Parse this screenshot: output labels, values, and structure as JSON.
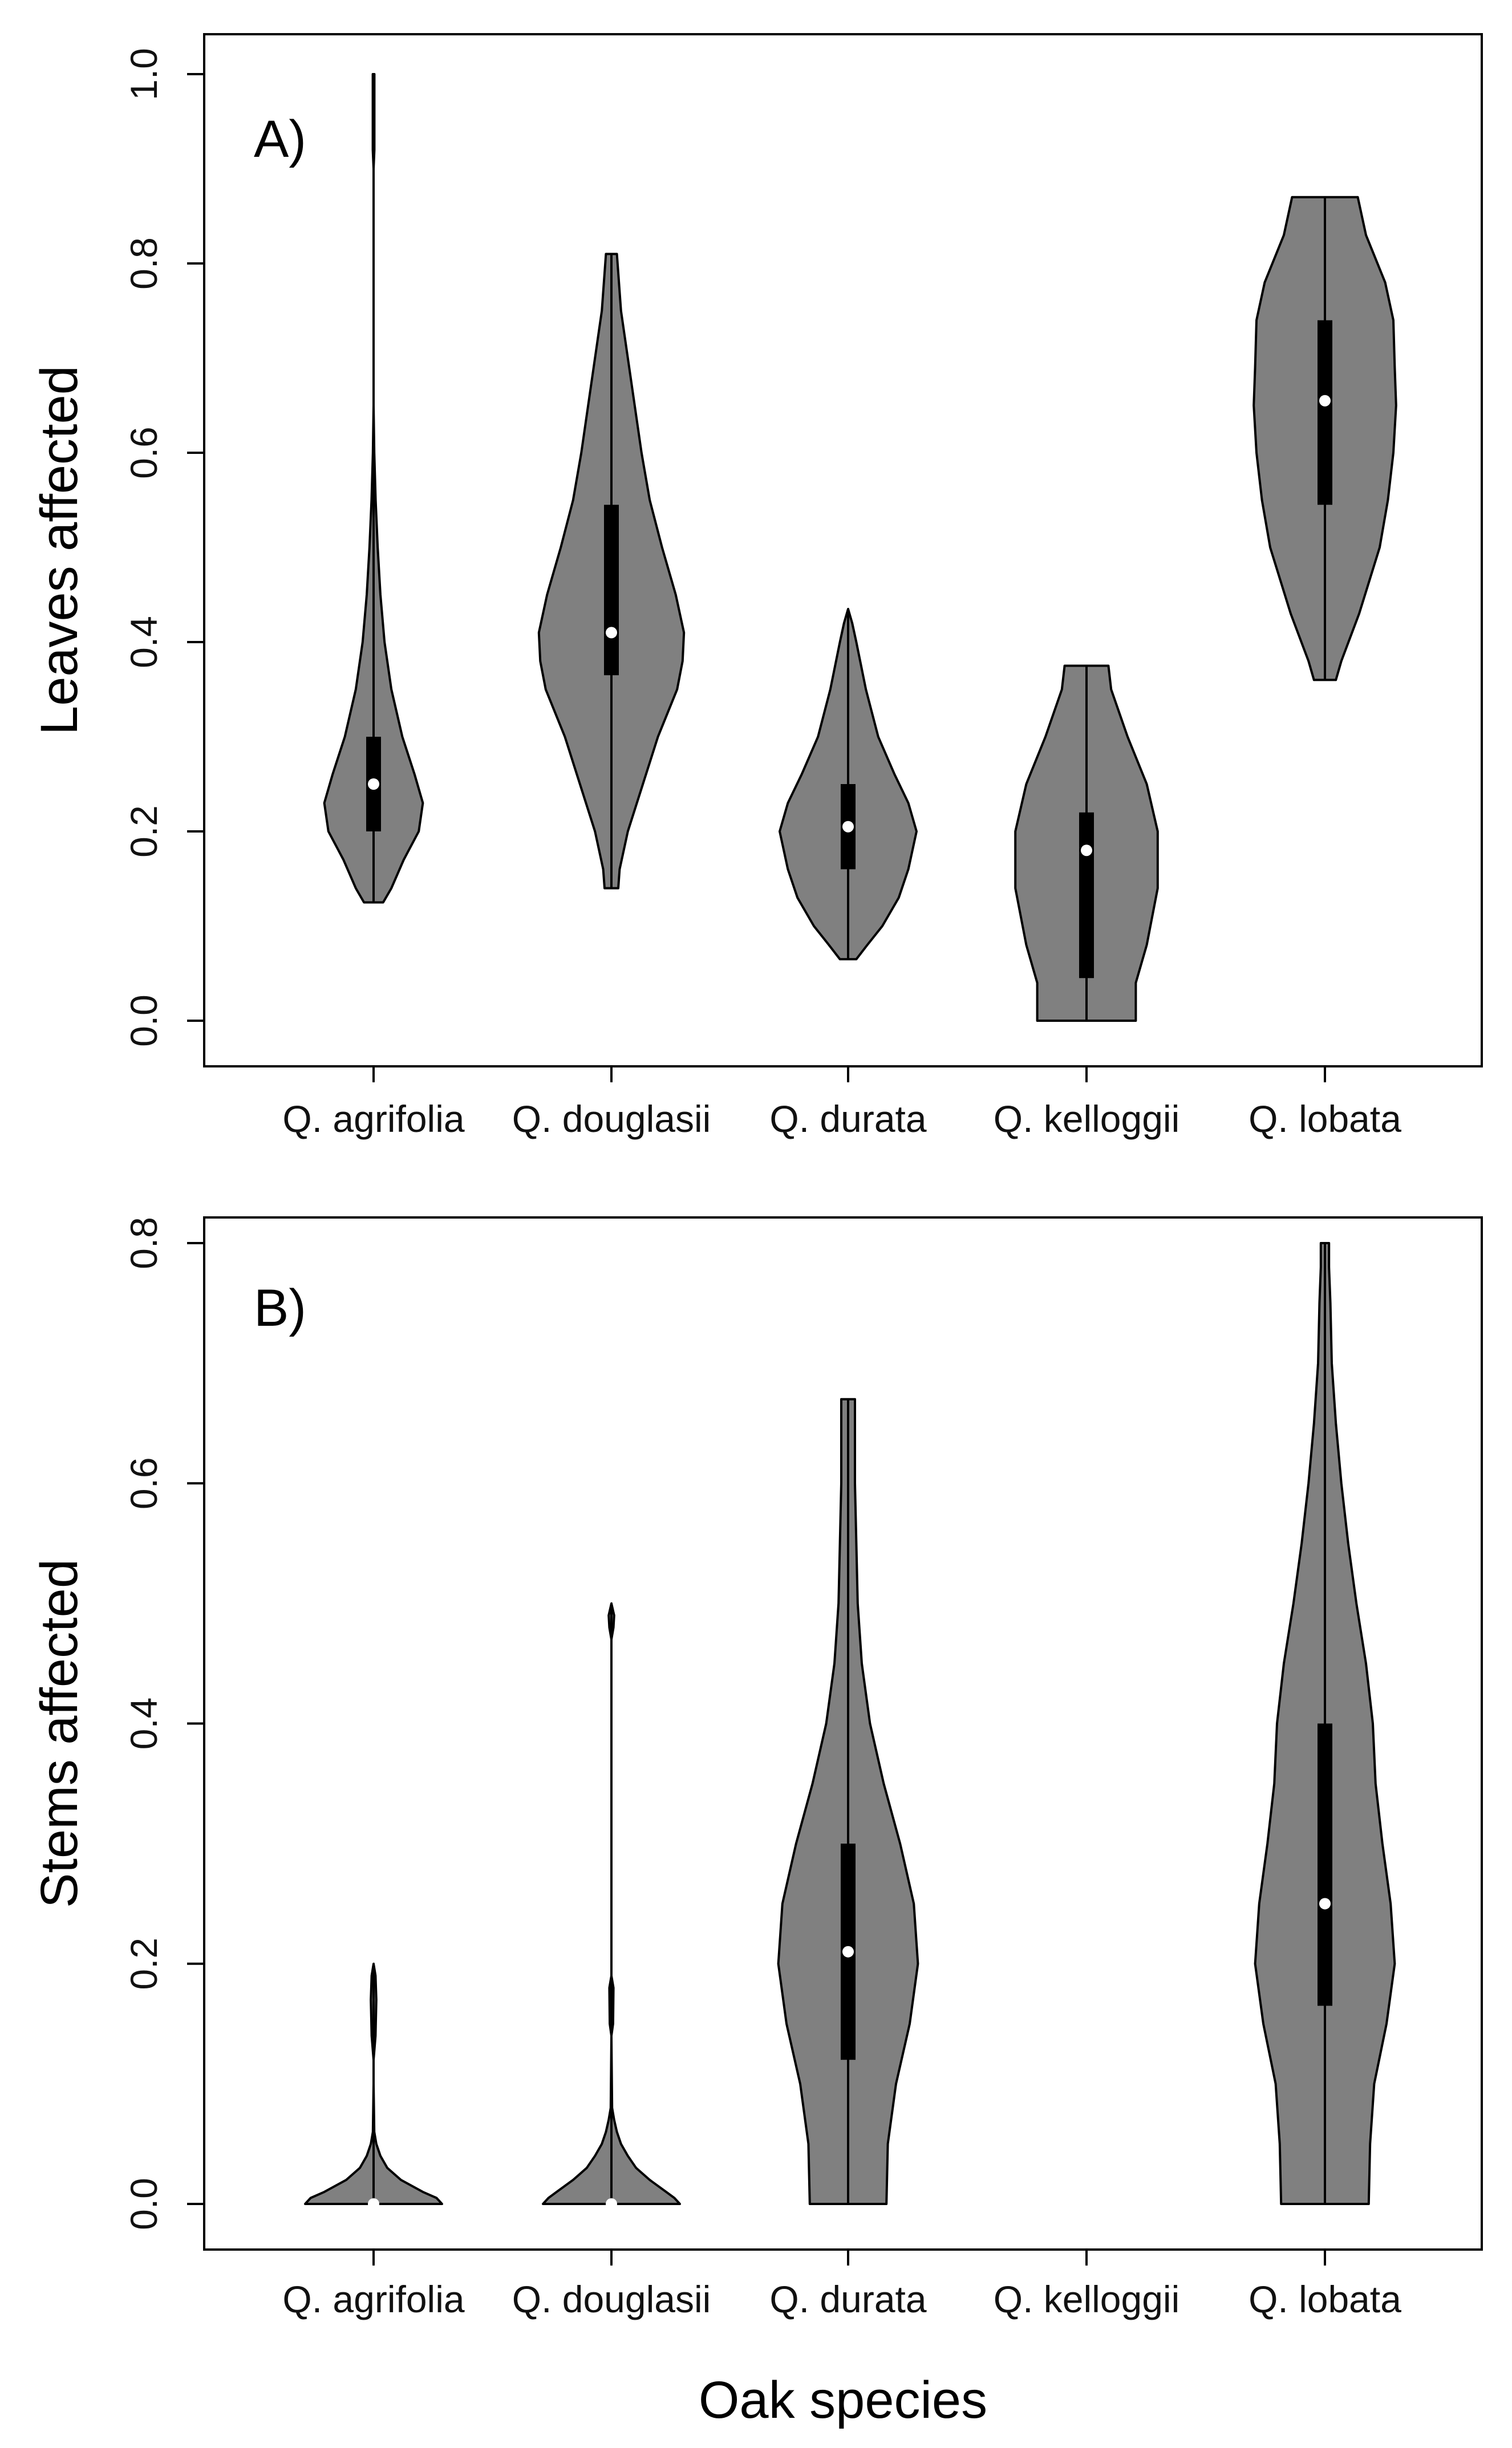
{
  "colors": {
    "violin_fill": "#808080",
    "outline": "#000000",
    "median": "#ffffff"
  },
  "chart_data": [
    {
      "type": "violin",
      "panel": "A)",
      "xlabel": "",
      "ylabel": "Leaves affected",
      "ylim": [
        0,
        1
      ],
      "yticks": [
        "0.0",
        "0.2",
        "0.4",
        "0.6",
        "0.8",
        "1.0"
      ],
      "categories": [
        "Q. agrifolia",
        "Q. douglasii",
        "Q. durata",
        "Q. kelloggii",
        "Q. lobata"
      ],
      "violins": [
        {
          "name": "Q. agrifolia",
          "min": 0.125,
          "max": 1.0,
          "q1": 0.2,
          "median": 0.25,
          "q3": 0.3,
          "profile": [
            [
              0.125,
              0.07
            ],
            [
              0.14,
              0.13
            ],
            [
              0.17,
              0.22
            ],
            [
              0.2,
              0.33
            ],
            [
              0.23,
              0.36
            ],
            [
              0.26,
              0.3
            ],
            [
              0.3,
              0.21
            ],
            [
              0.35,
              0.13
            ],
            [
              0.4,
              0.08
            ],
            [
              0.45,
              0.05
            ],
            [
              0.5,
              0.03
            ],
            [
              0.55,
              0.015
            ],
            [
              0.6,
              0.005
            ],
            [
              0.65,
              0.0
            ],
            [
              0.9,
              0.0
            ],
            [
              0.92,
              0.006
            ],
            [
              1.0,
              0.006
            ]
          ]
        },
        {
          "name": "Q. douglasii",
          "min": 0.14,
          "max": 0.81,
          "q1": 0.365,
          "median": 0.41,
          "q3": 0.545,
          "profile": [
            [
              0.14,
              0.05
            ],
            [
              0.16,
              0.06
            ],
            [
              0.2,
              0.12
            ],
            [
              0.25,
              0.23
            ],
            [
              0.3,
              0.34
            ],
            [
              0.35,
              0.48
            ],
            [
              0.38,
              0.52
            ],
            [
              0.41,
              0.53
            ],
            [
              0.45,
              0.47
            ],
            [
              0.5,
              0.37
            ],
            [
              0.55,
              0.28
            ],
            [
              0.6,
              0.22
            ],
            [
              0.65,
              0.17
            ],
            [
              0.7,
              0.12
            ],
            [
              0.75,
              0.07
            ],
            [
              0.79,
              0.05
            ],
            [
              0.81,
              0.04
            ]
          ]
        },
        {
          "name": "Q. durata",
          "min": 0.065,
          "max": 0.435,
          "q1": 0.16,
          "median": 0.205,
          "q3": 0.25,
          "profile": [
            [
              0.065,
              0.06
            ],
            [
              0.08,
              0.14
            ],
            [
              0.1,
              0.25
            ],
            [
              0.13,
              0.37
            ],
            [
              0.16,
              0.44
            ],
            [
              0.2,
              0.5
            ],
            [
              0.23,
              0.44
            ],
            [
              0.26,
              0.34
            ],
            [
              0.3,
              0.22
            ],
            [
              0.35,
              0.13
            ],
            [
              0.4,
              0.06
            ],
            [
              0.42,
              0.03
            ],
            [
              0.435,
              0.0
            ]
          ]
        },
        {
          "name": "Q. kelloggii",
          "min": 0.0,
          "max": 0.375,
          "q1": 0.045,
          "median": 0.18,
          "q3": 0.22,
          "profile": [
            [
              0.0,
              0.36
            ],
            [
              0.04,
              0.36
            ],
            [
              0.08,
              0.44
            ],
            [
              0.14,
              0.52
            ],
            [
              0.2,
              0.52
            ],
            [
              0.25,
              0.44
            ],
            [
              0.3,
              0.3
            ],
            [
              0.35,
              0.18
            ],
            [
              0.375,
              0.16
            ]
          ]
        },
        {
          "name": "Q. lobata",
          "min": 0.36,
          "max": 0.87,
          "q1": 0.545,
          "median": 0.655,
          "q3": 0.74,
          "profile": [
            [
              0.36,
              0.08
            ],
            [
              0.38,
              0.12
            ],
            [
              0.43,
              0.25
            ],
            [
              0.5,
              0.4
            ],
            [
              0.55,
              0.46
            ],
            [
              0.6,
              0.5
            ],
            [
              0.65,
              0.52
            ],
            [
              0.69,
              0.51
            ],
            [
              0.74,
              0.5
            ],
            [
              0.78,
              0.44
            ],
            [
              0.83,
              0.3
            ],
            [
              0.87,
              0.24
            ]
          ]
        }
      ]
    },
    {
      "type": "violin",
      "panel": "B)",
      "xlabel": "Oak species",
      "ylabel": "Stems affected",
      "ylim": [
        0,
        0.8
      ],
      "yticks": [
        "0.0",
        "0.2",
        "0.4",
        "0.6",
        "0.8"
      ],
      "categories": [
        "Q. agrifolia",
        "Q. douglasii",
        "Q. durata",
        "Q. kelloggii",
        "Q. lobata"
      ],
      "violins": [
        {
          "name": "Q. agrifolia",
          "min": 0.0,
          "max": 0.2,
          "q1": 0.0,
          "median": 0.0,
          "q3": 0.0,
          "profile": [
            [
              0.0,
              0.5
            ],
            [
              0.005,
              0.46
            ],
            [
              0.01,
              0.36
            ],
            [
              0.02,
              0.2
            ],
            [
              0.03,
              0.1
            ],
            [
              0.04,
              0.05
            ],
            [
              0.05,
              0.02
            ],
            [
              0.06,
              0.005
            ],
            [
              0.1,
              0.0
            ],
            [
              0.12,
              0.0
            ],
            [
              0.14,
              0.014
            ],
            [
              0.17,
              0.02
            ],
            [
              0.19,
              0.014
            ],
            [
              0.2,
              0.0
            ]
          ]
        },
        {
          "name": "Q. douglasii",
          "min": 0.0,
          "max": 0.5,
          "q1": 0.0,
          "median": 0.0,
          "q3": 0.0,
          "profile": [
            [
              0.0,
              0.5
            ],
            [
              0.005,
              0.46
            ],
            [
              0.01,
              0.4
            ],
            [
              0.02,
              0.28
            ],
            [
              0.03,
              0.18
            ],
            [
              0.04,
              0.12
            ],
            [
              0.05,
              0.07
            ],
            [
              0.06,
              0.04
            ],
            [
              0.07,
              0.02
            ],
            [
              0.08,
              0.005
            ],
            [
              0.14,
              0.0
            ],
            [
              0.15,
              0.012
            ],
            [
              0.18,
              0.015
            ],
            [
              0.19,
              0.0
            ],
            [
              0.47,
              0.0
            ],
            [
              0.48,
              0.015
            ],
            [
              0.49,
              0.02
            ],
            [
              0.5,
              0.0
            ]
          ]
        },
        {
          "name": "Q. durata",
          "min": 0.0,
          "max": 0.67,
          "q1": 0.12,
          "median": 0.21,
          "q3": 0.3,
          "profile": [
            [
              0.0,
              0.28
            ],
            [
              0.05,
              0.29
            ],
            [
              0.1,
              0.35
            ],
            [
              0.15,
              0.45
            ],
            [
              0.2,
              0.51
            ],
            [
              0.25,
              0.48
            ],
            [
              0.3,
              0.38
            ],
            [
              0.35,
              0.26
            ],
            [
              0.4,
              0.16
            ],
            [
              0.45,
              0.1
            ],
            [
              0.5,
              0.07
            ],
            [
              0.55,
              0.06
            ],
            [
              0.6,
              0.05
            ],
            [
              0.65,
              0.05
            ],
            [
              0.67,
              0.05
            ]
          ]
        },
        {
          "name": "Q. kelloggii",
          "min": null,
          "max": null,
          "q1": null,
          "median": null,
          "q3": null,
          "profile": []
        },
        {
          "name": "Q. lobata",
          "min": 0.0,
          "max": 0.8,
          "q1": 0.165,
          "median": 0.25,
          "q3": 0.4,
          "profile": [
            [
              0.0,
              0.32
            ],
            [
              0.05,
              0.33
            ],
            [
              0.1,
              0.36
            ],
            [
              0.15,
              0.45
            ],
            [
              0.2,
              0.51
            ],
            [
              0.25,
              0.48
            ],
            [
              0.3,
              0.42
            ],
            [
              0.35,
              0.37
            ],
            [
              0.4,
              0.35
            ],
            [
              0.45,
              0.3
            ],
            [
              0.5,
              0.23
            ],
            [
              0.55,
              0.17
            ],
            [
              0.6,
              0.12
            ],
            [
              0.65,
              0.08
            ],
            [
              0.7,
              0.05
            ],
            [
              0.75,
              0.04
            ],
            [
              0.78,
              0.03
            ],
            [
              0.8,
              0.03
            ]
          ]
        }
      ]
    }
  ]
}
